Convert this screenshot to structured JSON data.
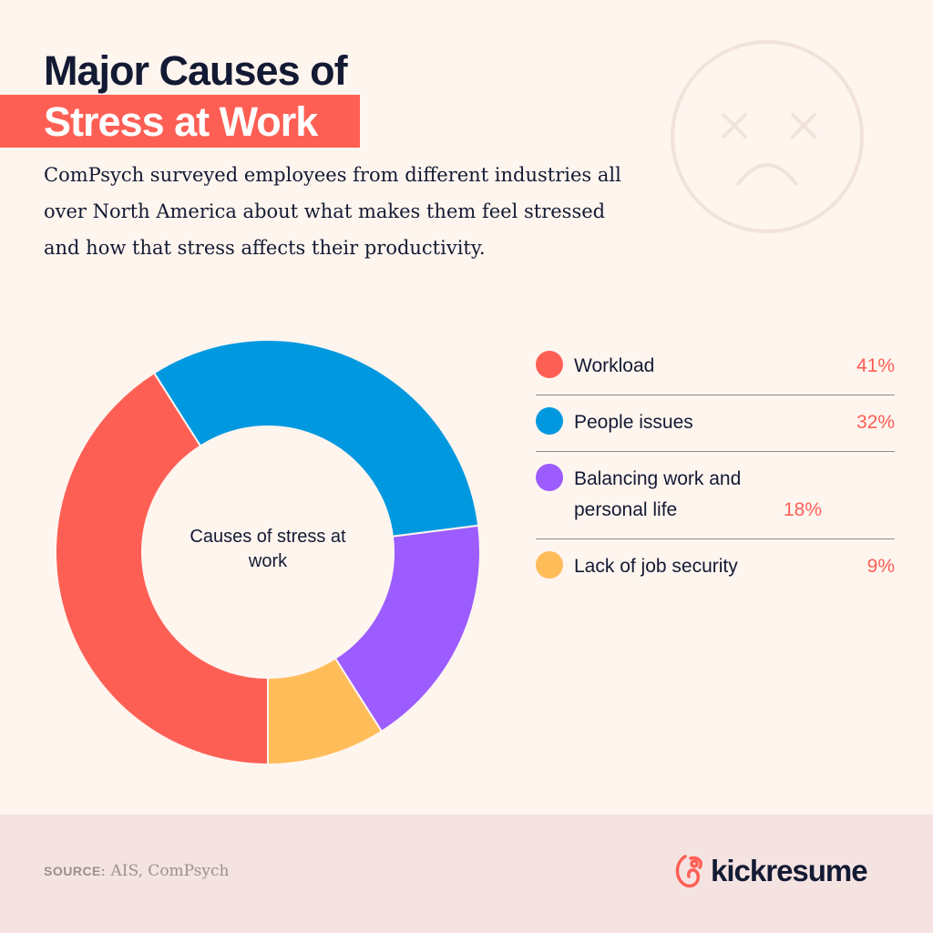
{
  "title": {
    "line1": "Major Causes of",
    "line2": "Stress at Work"
  },
  "description": "ComPsych surveyed employees from different industries all over North America about what makes them feel stressed and how that stress affects their productivity.",
  "decoration": {
    "icon": "sad-face-icon"
  },
  "chart_data": {
    "type": "pie",
    "style": "donut",
    "center_label": "Causes of stress at work",
    "categories": [
      "Workload",
      "People issues",
      "Balancing work and personal life",
      "Lack of job security"
    ],
    "values": [
      41,
      32,
      18,
      9
    ],
    "value_labels": [
      "41%",
      "32%",
      "18%",
      "9%"
    ],
    "colors": [
      "#fe5f55",
      "#0099e0",
      "#9c5cff",
      "#ffbd59"
    ],
    "start_angle": "bottom",
    "direction": "clockwise",
    "legend": "right"
  },
  "footer": {
    "source_label": "SOURCE:",
    "source_text": "AIS, ComPsych",
    "brand": "kickresume",
    "brand_color": "#fe5f55"
  }
}
